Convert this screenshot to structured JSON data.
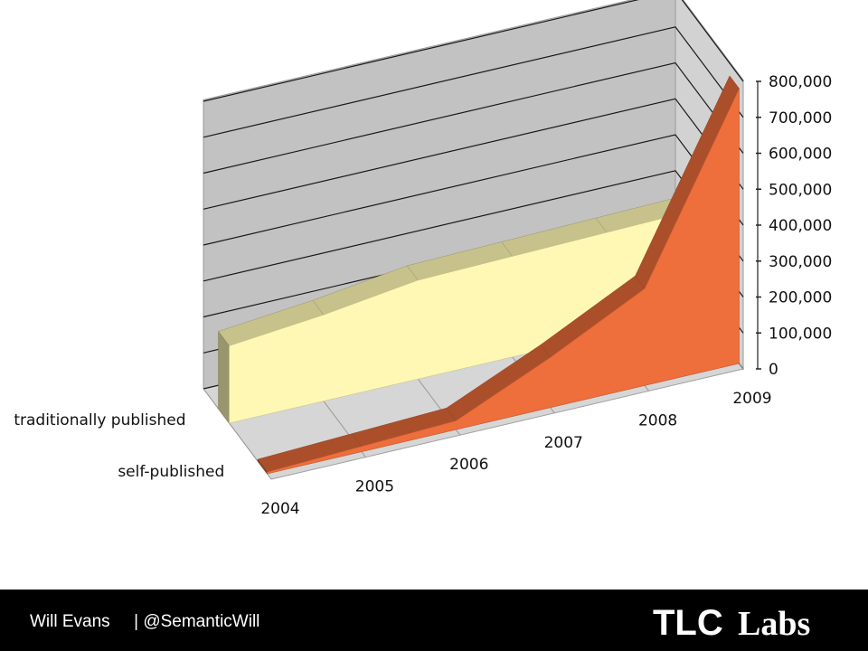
{
  "chart_data": {
    "type": "area",
    "categories": [
      "2004",
      "2005",
      "2006",
      "2007",
      "2008",
      "2009"
    ],
    "series": [
      {
        "name": "traditionally published",
        "values": [
          215000,
          240000,
          275000,
          280000,
          285000,
          290000
        ],
        "color": "#FFF8B4"
      },
      {
        "name": "self-published",
        "values": [
          5000,
          15000,
          25000,
          140000,
          270000,
          765000
        ],
        "color": "#EE6E3C"
      }
    ],
    "y_ticks": [
      "0",
      "100,000",
      "200,000",
      "300,000",
      "400,000",
      "500,000",
      "600,000",
      "700,000",
      "800,000"
    ],
    "ylim": [
      0,
      800000
    ],
    "grid": true,
    "style": "3d"
  },
  "footer": {
    "author": "Will Evans",
    "separator": "|",
    "handle": "@SemanticWill",
    "logo": "TLCLabs"
  }
}
